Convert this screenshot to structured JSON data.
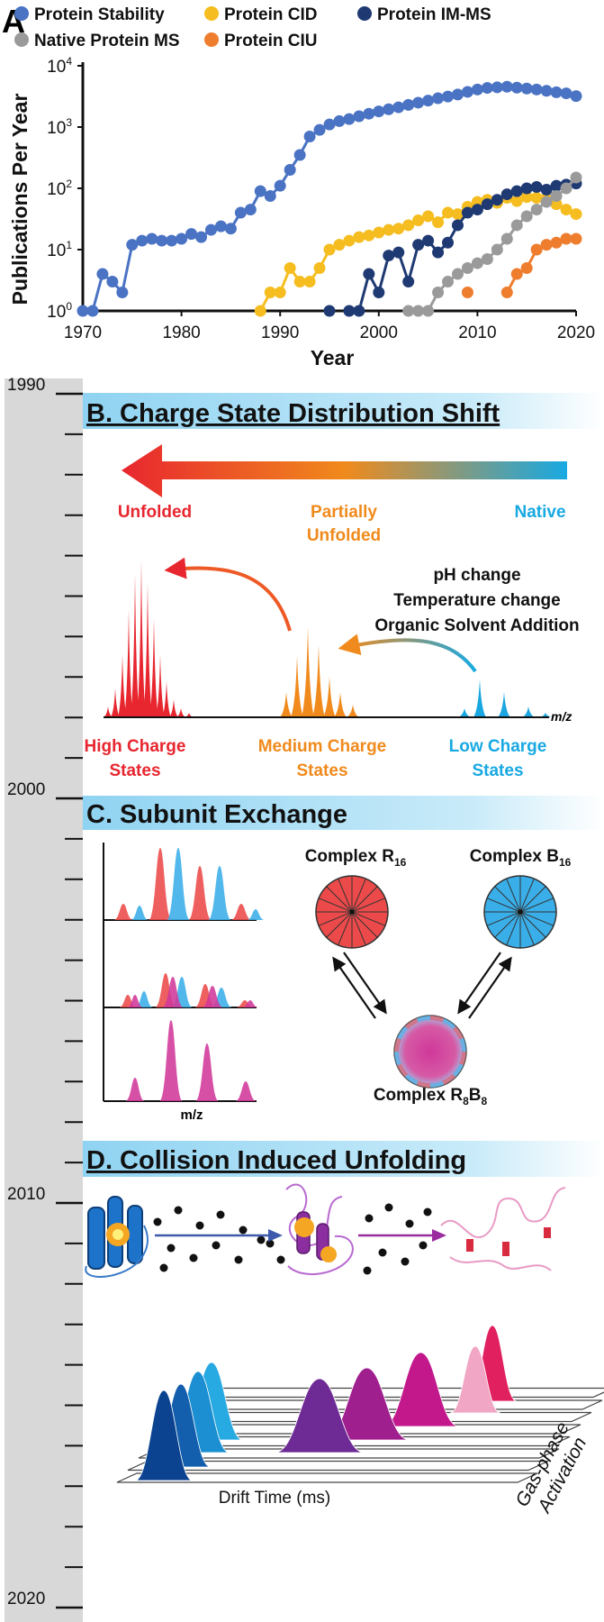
{
  "panel_a": {
    "letter": "A",
    "legend": [
      {
        "label": "Protein Stability",
        "color": "#4a73c4"
      },
      {
        "label": "Protein CID",
        "color": "#f5bd1f"
      },
      {
        "label": "Protein IM-MS",
        "color": "#1f3a73"
      },
      {
        "label": "Native Protein MS",
        "color": "#9a9a9a"
      },
      {
        "label": "Protein CIU",
        "color": "#ee7d2e"
      }
    ]
  },
  "chart_data": {
    "type": "line",
    "xlabel": "Year",
    "ylabel": "Publications Per Year",
    "xlim": [
      1970,
      2020
    ],
    "ylim": [
      1,
      10000
    ],
    "yscale": "log",
    "x_ticks": [
      "1970",
      "1980",
      "1990",
      "2000",
      "2010",
      "2020"
    ],
    "y_ticks": [
      {
        "base": "10",
        "exp": "0"
      },
      {
        "base": "10",
        "exp": "1"
      },
      {
        "base": "10",
        "exp": "2"
      },
      {
        "base": "10",
        "exp": "3"
      },
      {
        "base": "10",
        "exp": "4"
      }
    ],
    "series": [
      {
        "name": "Protein Stability",
        "color": "#4a73c4",
        "points": [
          [
            1970,
            1
          ],
          [
            1971,
            1
          ],
          [
            1972,
            4
          ],
          [
            1973,
            3
          ],
          [
            1974,
            2
          ],
          [
            1975,
            12
          ],
          [
            1976,
            14
          ],
          [
            1977,
            15
          ],
          [
            1978,
            14
          ],
          [
            1979,
            14
          ],
          [
            1980,
            15
          ],
          [
            1981,
            18
          ],
          [
            1982,
            16
          ],
          [
            1983,
            21
          ],
          [
            1984,
            24
          ],
          [
            1985,
            22
          ],
          [
            1986,
            40
          ],
          [
            1987,
            45
          ],
          [
            1988,
            90
          ],
          [
            1989,
            75
          ],
          [
            1990,
            110
          ],
          [
            1991,
            200
          ],
          [
            1992,
            350
          ],
          [
            1993,
            700
          ],
          [
            1994,
            900
          ],
          [
            1995,
            1100
          ],
          [
            1996,
            1250
          ],
          [
            1997,
            1350
          ],
          [
            1998,
            1500
          ],
          [
            1999,
            1650
          ],
          [
            2000,
            1800
          ],
          [
            2001,
            1950
          ],
          [
            2002,
            2100
          ],
          [
            2003,
            2300
          ],
          [
            2004,
            2500
          ],
          [
            2005,
            2700
          ],
          [
            2006,
            2950
          ],
          [
            2007,
            3150
          ],
          [
            2008,
            3400
          ],
          [
            2009,
            3750
          ],
          [
            2010,
            4100
          ],
          [
            2011,
            4350
          ],
          [
            2012,
            4450
          ],
          [
            2013,
            4550
          ],
          [
            2014,
            4400
          ],
          [
            2015,
            4250
          ],
          [
            2016,
            4100
          ],
          [
            2017,
            3900
          ],
          [
            2018,
            3700
          ],
          [
            2019,
            3550
          ],
          [
            2020,
            3200
          ]
        ]
      },
      {
        "name": "Protein CID",
        "color": "#f5bd1f",
        "points": [
          [
            1988,
            1
          ],
          [
            1989,
            2
          ],
          [
            1990,
            2
          ],
          [
            1991,
            5
          ],
          [
            1992,
            3
          ],
          [
            1993,
            3
          ],
          [
            1994,
            5
          ],
          [
            1995,
            10
          ],
          [
            1996,
            12
          ],
          [
            1997,
            14
          ],
          [
            1998,
            16
          ],
          [
            1999,
            17
          ],
          [
            2000,
            19
          ],
          [
            2001,
            21
          ],
          [
            2002,
            22
          ],
          [
            2003,
            25
          ],
          [
            2004,
            30
          ],
          [
            2005,
            35
          ],
          [
            2006,
            28
          ],
          [
            2007,
            40
          ],
          [
            2008,
            38
          ],
          [
            2009,
            50
          ],
          [
            2010,
            60
          ],
          [
            2011,
            65
          ],
          [
            2012,
            58
          ],
          [
            2013,
            70
          ],
          [
            2014,
            62
          ],
          [
            2015,
            72
          ],
          [
            2016,
            70
          ],
          [
            2017,
            68
          ],
          [
            2018,
            55
          ],
          [
            2019,
            45
          ],
          [
            2020,
            38
          ]
        ]
      },
      {
        "name": "Protein IM-MS",
        "color": "#1f3a73",
        "points": [
          [
            1995,
            1
          ],
          [
            1997,
            1
          ],
          [
            1998,
            1
          ],
          [
            1999,
            4
          ],
          [
            2000,
            2
          ],
          [
            2001,
            8
          ],
          [
            2002,
            9
          ],
          [
            2003,
            3
          ],
          [
            2004,
            12
          ],
          [
            2005,
            14
          ],
          [
            2006,
            9
          ],
          [
            2007,
            13
          ],
          [
            2008,
            25
          ],
          [
            2009,
            40
          ],
          [
            2010,
            45
          ],
          [
            2011,
            55
          ],
          [
            2012,
            65
          ],
          [
            2013,
            80
          ],
          [
            2014,
            90
          ],
          [
            2015,
            100
          ],
          [
            2016,
            105
          ],
          [
            2017,
            95
          ],
          [
            2018,
            110
          ],
          [
            2019,
            115
          ],
          [
            2020,
            120
          ]
        ]
      },
      {
        "name": "Native Protein MS",
        "color": "#9a9a9a",
        "points": [
          [
            2003,
            1
          ],
          [
            2004,
            1
          ],
          [
            2005,
            1
          ],
          [
            2006,
            2
          ],
          [
            2007,
            3
          ],
          [
            2008,
            4
          ],
          [
            2009,
            5
          ],
          [
            2010,
            6
          ],
          [
            2011,
            7
          ],
          [
            2012,
            10
          ],
          [
            2013,
            15
          ],
          [
            2014,
            25
          ],
          [
            2015,
            35
          ],
          [
            2016,
            45
          ],
          [
            2017,
            60
          ],
          [
            2018,
            75
          ],
          [
            2019,
            100
          ],
          [
            2020,
            150
          ]
        ]
      },
      {
        "name": "Protein CIU",
        "color": "#ee7d2e",
        "points": [
          [
            2009,
            2
          ],
          [
            2013,
            2
          ],
          [
            2014,
            4
          ],
          [
            2015,
            5
          ],
          [
            2016,
            10
          ],
          [
            2017,
            12
          ],
          [
            2018,
            13
          ],
          [
            2019,
            15
          ],
          [
            2020,
            15
          ]
        ]
      }
    ]
  },
  "timeline": {
    "labels": [
      "1990",
      "2000",
      "2010",
      "2020"
    ]
  },
  "panel_b": {
    "title": "B. Charge State Distribution Shift",
    "states": {
      "unfolded": "Unfolded",
      "partial_1": "Partially",
      "partial_2": "Unfolded",
      "native": "Native"
    },
    "conditions": [
      "pH change",
      "Temperature change",
      "Organic Solvent Addition"
    ],
    "mz": "m/z",
    "groups": [
      {
        "line1": "High Charge",
        "line2": "States",
        "color": "#e8262f"
      },
      {
        "line1": "Medium Charge",
        "line2": "States",
        "color": "#f08a1c"
      },
      {
        "line1": "Low Charge",
        "line2": "States",
        "color": "#1aa7e0"
      }
    ]
  },
  "panel_c": {
    "title": "C. Subunit Exchange",
    "complex_r": {
      "name": "Complex R",
      "sub": "16"
    },
    "complex_b": {
      "name": "Complex B",
      "sub": "16"
    },
    "complex_rb": {
      "name": "Complex R",
      "sub1": "8",
      "mid": "B",
      "sub2": "8"
    },
    "mz": "m/z",
    "colors": {
      "red": "#ec4a4a",
      "blue": "#3aaee8",
      "magenta": "#d0389a"
    }
  },
  "panel_d": {
    "title": "D. Collision Induced Unfolding",
    "xlabel": "Drift Time (ms)",
    "zlabel_1": "Gas-phase",
    "zlabel_2": "Activation"
  }
}
